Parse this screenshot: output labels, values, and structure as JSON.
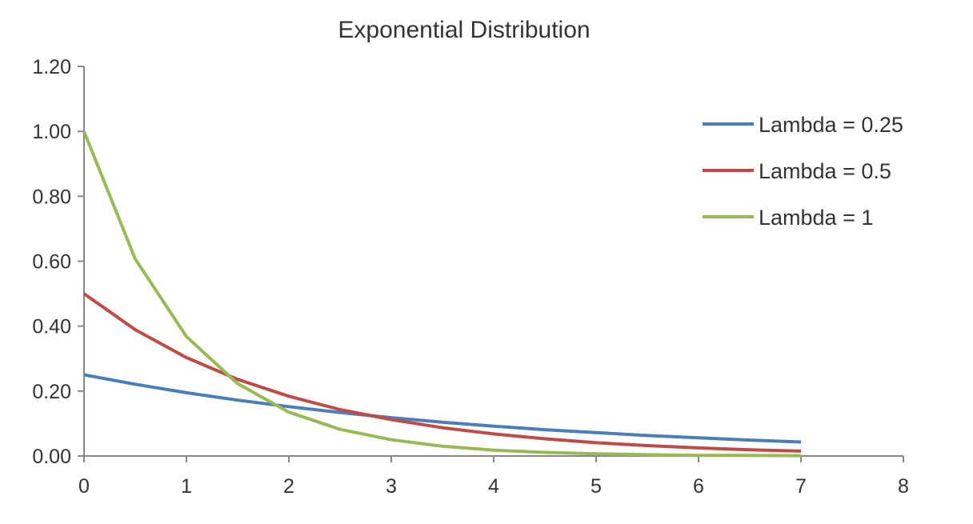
{
  "chart_data": {
    "type": "line",
    "title": "Exponential Distribution",
    "xlabel": "",
    "ylabel": "",
    "xlim": [
      0,
      8
    ],
    "ylim": [
      0,
      1.2
    ],
    "x_ticks": [
      "0",
      "1",
      "2",
      "3",
      "4",
      "5",
      "6",
      "7",
      "8"
    ],
    "y_ticks": [
      "0.00",
      "0.20",
      "0.40",
      "0.60",
      "0.80",
      "1.00",
      "1.20"
    ],
    "grid": false,
    "legend_position": "top-right",
    "x": [
      0,
      0.5,
      1,
      1.5,
      2,
      2.5,
      3,
      3.5,
      4,
      4.5,
      5,
      5.5,
      6,
      6.5,
      7
    ],
    "series": [
      {
        "name": "Lambda = 0.25",
        "color": "#4a7ebb",
        "values": [
          0.25,
          0.221,
          0.195,
          0.172,
          0.152,
          0.134,
          0.118,
          0.104,
          0.092,
          0.081,
          0.072,
          0.063,
          0.056,
          0.049,
          0.043
        ]
      },
      {
        "name": "Lambda = 0.5",
        "color": "#be4b48",
        "values": [
          0.5,
          0.389,
          0.303,
          0.236,
          0.184,
          0.143,
          0.112,
          0.087,
          0.068,
          0.053,
          0.041,
          0.032,
          0.025,
          0.019,
          0.015
        ]
      },
      {
        "name": "Lambda = 1",
        "color": "#98b954",
        "values": [
          1.0,
          0.607,
          0.368,
          0.223,
          0.135,
          0.082,
          0.05,
          0.03,
          0.018,
          0.011,
          0.007,
          0.004,
          0.002,
          0.002,
          0.001
        ]
      }
    ]
  }
}
